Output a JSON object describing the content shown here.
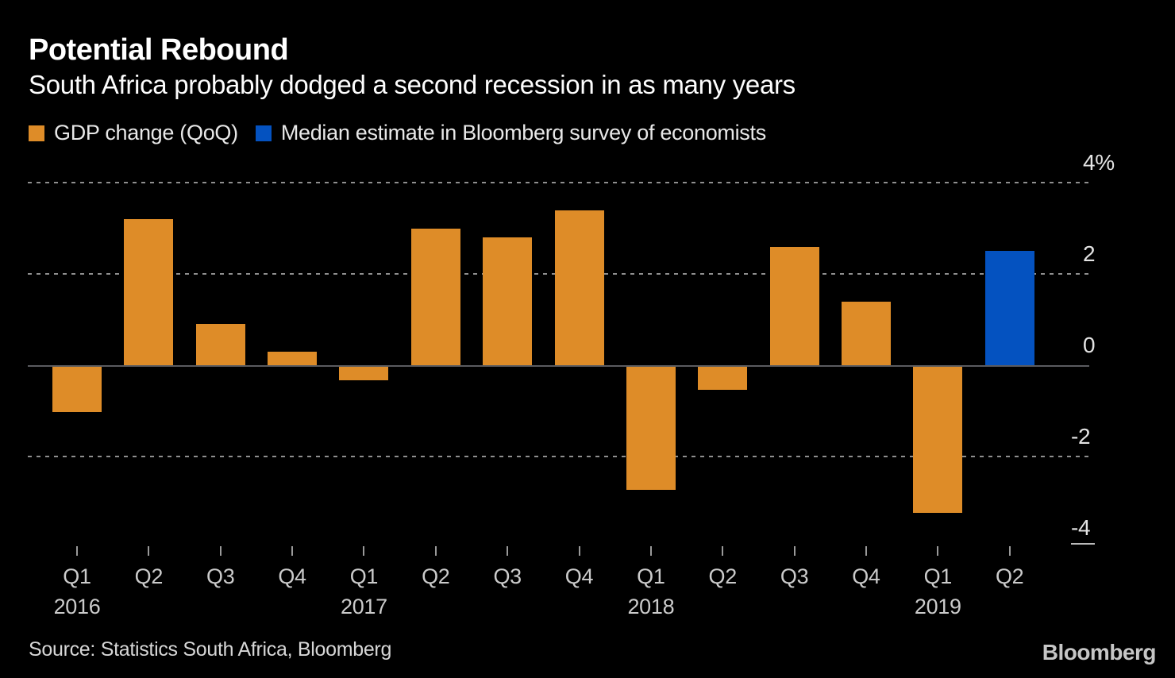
{
  "header": {
    "title": "Potential Rebound",
    "subtitle": "South Africa probably dodged a second recession in as many years"
  },
  "legend": {
    "items": [
      {
        "label": "GDP change (QoQ)",
        "color": "#DE8C28"
      },
      {
        "label": "Median estimate in Bloomberg survey of economists",
        "color": "#0452C0"
      }
    ]
  },
  "chart_data": {
    "type": "bar",
    "title": "Potential Rebound",
    "subtitle": "South Africa probably dodged a second recession in as many years",
    "unit": "percent",
    "categories": [
      "Q1 2016",
      "Q2 2016",
      "Q3 2016",
      "Q4 2016",
      "Q1 2017",
      "Q2 2017",
      "Q3 2017",
      "Q4 2017",
      "Q1 2018",
      "Q2 2018",
      "Q3 2018",
      "Q4 2018",
      "Q1 2019",
      "Q2 2019"
    ],
    "series": [
      {
        "name": "GDP change (QoQ)",
        "color": "#DE8C28",
        "values": [
          -1.0,
          3.2,
          0.9,
          0.3,
          -0.3,
          3.0,
          2.8,
          3.4,
          -2.7,
          -0.5,
          2.6,
          1.4,
          -3.2,
          null
        ]
      },
      {
        "name": "Median estimate in Bloomberg survey of economists",
        "color": "#0452C0",
        "values": [
          null,
          null,
          null,
          null,
          null,
          null,
          null,
          null,
          null,
          null,
          null,
          null,
          null,
          2.5
        ]
      }
    ],
    "y_ticks": [
      {
        "label": "4%",
        "value": 4
      },
      {
        "label": "2",
        "value": 2
      },
      {
        "label": "0",
        "value": 0
      },
      {
        "label": "-2",
        "value": -2
      },
      {
        "label": "-4",
        "value": -4
      }
    ],
    "gridline_values": [
      4,
      2,
      -2
    ],
    "ylim": [
      -4.6,
      4.3
    ],
    "grid": "dotted-horizontal",
    "legend_position": "top",
    "x_year_labels": [
      "2016",
      "2017",
      "2018",
      "2019"
    ]
  },
  "footer": {
    "source": "Source: Statistics South Africa, Bloomberg",
    "logo": "Bloomberg"
  },
  "colors": {
    "background": "#000000",
    "bar_orange": "#DE8C28",
    "bar_blue": "#0452C0",
    "text_primary": "#FFFFFF",
    "text_axis": "#CBCBCB",
    "gridline": "#8F8F8F",
    "zero_line": "#5A5B5F"
  }
}
